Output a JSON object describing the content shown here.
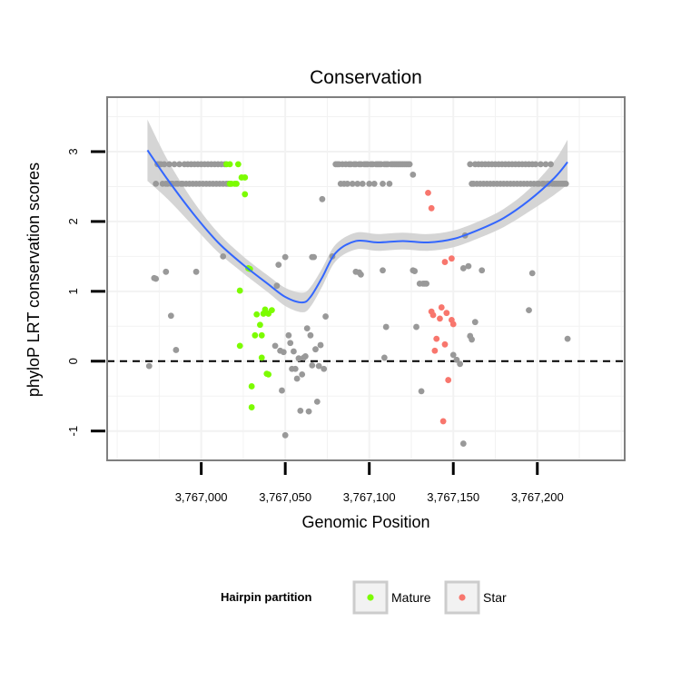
{
  "chart_data": {
    "type": "scatter",
    "title": "Conservation",
    "xlabel": "Genomic Position",
    "ylabel": "phyloP LRT conservation scores",
    "xlim": [
      3766944,
      3767252
    ],
    "ylim": [
      -1.42,
      3.78
    ],
    "x_ticks": [
      3767000,
      3767050,
      3767100,
      3767150,
      3767200
    ],
    "x_tick_labels": [
      "3,767,000",
      "3,767,050",
      "3,767,100",
      "3,767,150",
      "3,767,200"
    ],
    "y_ticks": [
      -1,
      0,
      1,
      2,
      3
    ],
    "y_tick_labels": [
      "-1",
      "0",
      "1",
      "2",
      "3"
    ],
    "grid": true,
    "reference_line": {
      "y": 0,
      "style": "dashed"
    },
    "legend": {
      "title": "Hairpin partition",
      "position": "bottom",
      "entries": [
        {
          "label": "Mature",
          "color": "#7cfc00"
        },
        {
          "label": "Star",
          "color": "#f8766d"
        }
      ]
    },
    "colors": {
      "other": "#999999",
      "Mature": "#7cfc00",
      "Star": "#f8766d",
      "smooth": "#3366ff",
      "band": "#d0d0d0"
    },
    "series": [
      {
        "name": "Other",
        "points": [
          [
            3766973,
            2.54
          ],
          [
            3766974,
            2.82
          ],
          [
            3766975,
            2.82
          ],
          [
            3766976,
            2.82
          ],
          [
            3766977,
            2.54
          ],
          [
            3766978,
            2.82
          ],
          [
            3766979,
            2.54
          ],
          [
            3766980,
            2.54
          ],
          [
            3766981,
            2.82
          ],
          [
            3766982,
            2.54
          ],
          [
            3766983,
            2.54
          ],
          [
            3766984,
            2.82
          ],
          [
            3766985,
            2.54
          ],
          [
            3766986,
            2.54
          ],
          [
            3766987,
            2.82
          ],
          [
            3766988,
            2.54
          ],
          [
            3766989,
            2.54
          ],
          [
            3766990,
            2.82
          ],
          [
            3766991,
            2.54
          ],
          [
            3766992,
            2.82
          ],
          [
            3766993,
            2.54
          ],
          [
            3766994,
            2.82
          ],
          [
            3766995,
            2.54
          ],
          [
            3766996,
            2.82
          ],
          [
            3766997,
            2.54
          ],
          [
            3766998,
            2.82
          ],
          [
            3766999,
            2.54
          ],
          [
            3767000,
            2.82
          ],
          [
            3767001,
            2.54
          ],
          [
            3767002,
            2.82
          ],
          [
            3767003,
            2.54
          ],
          [
            3767004,
            2.82
          ],
          [
            3767005,
            2.54
          ],
          [
            3767006,
            2.82
          ],
          [
            3767007,
            2.54
          ],
          [
            3767008,
            2.82
          ],
          [
            3767009,
            2.54
          ],
          [
            3767010,
            2.82
          ],
          [
            3767011,
            2.54
          ],
          [
            3767012,
            2.82
          ],
          [
            3767013,
            2.54
          ],
          [
            3767014,
            2.82
          ],
          [
            3767015,
            2.54
          ],
          [
            3767016,
            2.54
          ],
          [
            3767017,
            2.54
          ],
          [
            3767080,
            2.82
          ],
          [
            3767081,
            2.82
          ],
          [
            3767082,
            2.82
          ],
          [
            3767083,
            2.54
          ],
          [
            3767084,
            2.82
          ],
          [
            3767085,
            2.54
          ],
          [
            3767086,
            2.82
          ],
          [
            3767087,
            2.54
          ],
          [
            3767088,
            2.82
          ],
          [
            3767089,
            2.82
          ],
          [
            3767090,
            2.54
          ],
          [
            3767091,
            2.82
          ],
          [
            3767092,
            2.82
          ],
          [
            3767093,
            2.54
          ],
          [
            3767094,
            2.82
          ],
          [
            3767095,
            2.82
          ],
          [
            3767096,
            2.54
          ],
          [
            3767097,
            2.82
          ],
          [
            3767098,
            2.82
          ],
          [
            3767099,
            2.82
          ],
          [
            3767100,
            2.54
          ],
          [
            3767101,
            2.82
          ],
          [
            3767102,
            2.82
          ],
          [
            3767103,
            2.54
          ],
          [
            3767104,
            2.82
          ],
          [
            3767105,
            2.82
          ],
          [
            3767106,
            2.82
          ],
          [
            3767107,
            2.82
          ],
          [
            3767108,
            2.54
          ],
          [
            3767109,
            2.82
          ],
          [
            3767110,
            2.82
          ],
          [
            3767111,
            2.82
          ],
          [
            3767112,
            2.54
          ],
          [
            3767113,
            2.82
          ],
          [
            3767114,
            2.82
          ],
          [
            3767115,
            2.82
          ],
          [
            3767116,
            2.82
          ],
          [
            3767117,
            2.82
          ],
          [
            3767118,
            2.82
          ],
          [
            3767119,
            2.82
          ],
          [
            3767120,
            2.82
          ],
          [
            3767121,
            2.82
          ],
          [
            3767122,
            2.82
          ],
          [
            3767123,
            2.82
          ],
          [
            3767124,
            2.82
          ],
          [
            3767126,
            2.67
          ],
          [
            3767160,
            2.82
          ],
          [
            3767161,
            2.54
          ],
          [
            3767162,
            2.54
          ],
          [
            3767163,
            2.82
          ],
          [
            3767164,
            2.54
          ],
          [
            3767165,
            2.82
          ],
          [
            3767166,
            2.54
          ],
          [
            3767167,
            2.82
          ],
          [
            3767168,
            2.54
          ],
          [
            3767169,
            2.82
          ],
          [
            3767170,
            2.54
          ],
          [
            3767171,
            2.82
          ],
          [
            3767172,
            2.54
          ],
          [
            3767173,
            2.82
          ],
          [
            3767174,
            2.54
          ],
          [
            3767175,
            2.82
          ],
          [
            3767176,
            2.54
          ],
          [
            3767177,
            2.82
          ],
          [
            3767178,
            2.54
          ],
          [
            3767179,
            2.82
          ],
          [
            3767180,
            2.54
          ],
          [
            3767181,
            2.82
          ],
          [
            3767182,
            2.54
          ],
          [
            3767183,
            2.82
          ],
          [
            3767184,
            2.54
          ],
          [
            3767185,
            2.82
          ],
          [
            3767186,
            2.54
          ],
          [
            3767187,
            2.82
          ],
          [
            3767188,
            2.54
          ],
          [
            3767189,
            2.82
          ],
          [
            3767190,
            2.54
          ],
          [
            3767191,
            2.82
          ],
          [
            3767192,
            2.54
          ],
          [
            3767193,
            2.82
          ],
          [
            3767194,
            2.54
          ],
          [
            3767195,
            2.82
          ],
          [
            3767196,
            2.54
          ],
          [
            3767197,
            2.82
          ],
          [
            3767198,
            2.54
          ],
          [
            3767199,
            2.82
          ],
          [
            3767200,
            2.54
          ],
          [
            3767201,
            2.54
          ],
          [
            3767202,
            2.82
          ],
          [
            3767203,
            2.54
          ],
          [
            3767204,
            2.54
          ],
          [
            3767205,
            2.82
          ],
          [
            3767206,
            2.54
          ],
          [
            3767207,
            2.54
          ],
          [
            3767208,
            2.82
          ],
          [
            3767209,
            2.54
          ],
          [
            3767210,
            2.54
          ],
          [
            3767211,
            2.54
          ],
          [
            3767212,
            2.54
          ],
          [
            3767213,
            2.54
          ],
          [
            3767214,
            2.54
          ],
          [
            3767215,
            2.54
          ],
          [
            3767216,
            2.54
          ],
          [
            3767217,
            2.54
          ],
          [
            3766969,
            -0.07
          ],
          [
            3766972,
            1.19
          ],
          [
            3766973,
            1.18
          ],
          [
            3766979,
            1.28
          ],
          [
            3766982,
            0.65
          ],
          [
            3766985,
            0.16
          ],
          [
            3766997,
            1.28
          ],
          [
            3767013,
            1.5
          ],
          [
            3767045,
            1.08
          ],
          [
            3767046,
            1.38
          ],
          [
            3767044,
            0.22
          ],
          [
            3767047,
            0.15
          ],
          [
            3767048,
            -0.42
          ],
          [
            3767049,
            0.13
          ],
          [
            3767050,
            -1.06
          ],
          [
            3767050,
            1.49
          ],
          [
            3767052,
            0.37
          ],
          [
            3767053,
            0.26
          ],
          [
            3767054,
            -0.11
          ],
          [
            3767055,
            0.14
          ],
          [
            3767056,
            -0.11
          ],
          [
            3767057,
            -0.25
          ],
          [
            3767058,
            0.04
          ],
          [
            3767059,
            -0.71
          ],
          [
            3767060,
            -0.19
          ],
          [
            3767061,
            0.05
          ],
          [
            3767062,
            0.07
          ],
          [
            3767063,
            0.47
          ],
          [
            3767064,
            -0.72
          ],
          [
            3767065,
            0.37
          ],
          [
            3767066,
            -0.06
          ],
          [
            3767066,
            1.49
          ],
          [
            3767067,
            1.49
          ],
          [
            3767068,
            0.17
          ],
          [
            3767069,
            -0.58
          ],
          [
            3767070,
            -0.07
          ],
          [
            3767071,
            0.23
          ],
          [
            3767072,
            2.32
          ],
          [
            3767073,
            -0.11
          ],
          [
            3767074,
            0.64
          ],
          [
            3767078,
            1.5
          ],
          [
            3767092,
            1.28
          ],
          [
            3767094,
            1.27
          ],
          [
            3767095,
            1.24
          ],
          [
            3767108,
            1.3
          ],
          [
            3767109,
            0.05
          ],
          [
            3767110,
            0.49
          ],
          [
            3767126,
            1.3
          ],
          [
            3767127,
            1.29
          ],
          [
            3767128,
            0.49
          ],
          [
            3767130,
            1.11
          ],
          [
            3767131,
            -0.43
          ],
          [
            3767132,
            1.11
          ],
          [
            3767133,
            1.11
          ],
          [
            3767134,
            1.11
          ],
          [
            3767150,
            0.09
          ],
          [
            3767152,
            0.02
          ],
          [
            3767154,
            -0.04
          ],
          [
            3767156,
            -1.18
          ],
          [
            3767156,
            1.33
          ],
          [
            3767157,
            1.8
          ],
          [
            3767159,
            1.36
          ],
          [
            3767160,
            0.36
          ],
          [
            3767161,
            0.31
          ],
          [
            3767163,
            0.56
          ],
          [
            3767167,
            1.3
          ],
          [
            3767195,
            0.73
          ],
          [
            3767197,
            1.26
          ],
          [
            3767218,
            0.32
          ]
        ]
      },
      {
        "name": "Mature",
        "points": [
          [
            3767015,
            2.82
          ],
          [
            3767017,
            2.82
          ],
          [
            3767017,
            2.54
          ],
          [
            3767018,
            2.54
          ],
          [
            3767020,
            2.54
          ],
          [
            3767021,
            2.54
          ],
          [
            3767022,
            2.82
          ],
          [
            3767024,
            2.63
          ],
          [
            3767026,
            2.63
          ],
          [
            3767026,
            2.39
          ],
          [
            3767028,
            1.33
          ],
          [
            3767029,
            1.32
          ],
          [
            3767023,
            1.01
          ],
          [
            3767023,
            0.22
          ],
          [
            3767030,
            -0.36
          ],
          [
            3767030,
            -0.66
          ],
          [
            3767032,
            0.37
          ],
          [
            3767033,
            0.67
          ],
          [
            3767035,
            0.52
          ],
          [
            3767036,
            0.37
          ],
          [
            3767036,
            0.05
          ],
          [
            3767037,
            0.68
          ],
          [
            3767038,
            0.74
          ],
          [
            3767039,
            -0.18
          ],
          [
            3767040,
            0.68
          ],
          [
            3767040,
            -0.19
          ],
          [
            3767042,
            0.73
          ]
        ]
      },
      {
        "name": "Star",
        "points": [
          [
            3767135,
            2.41
          ],
          [
            3767137,
            2.19
          ],
          [
            3767137,
            0.71
          ],
          [
            3767138,
            0.66
          ],
          [
            3767139,
            0.15
          ],
          [
            3767140,
            0.32
          ],
          [
            3767142,
            0.61
          ],
          [
            3767143,
            0.77
          ],
          [
            3767144,
            -0.86
          ],
          [
            3767145,
            1.42
          ],
          [
            3767145,
            0.24
          ],
          [
            3767146,
            0.69
          ],
          [
            3767147,
            -0.27
          ],
          [
            3767149,
            1.47
          ],
          [
            3767149,
            0.59
          ],
          [
            3767150,
            0.53
          ]
        ]
      }
    ],
    "smooth_curve": {
      "x": [
        3766968,
        3766980,
        3766995,
        3767010,
        3767025,
        3767040,
        3767050,
        3767060,
        3767065,
        3767072,
        3767080,
        3767092,
        3767105,
        3767120,
        3767135,
        3767150,
        3767165,
        3767180,
        3767195,
        3767210,
        3767218
      ],
      "y": [
        3.02,
        2.6,
        2.12,
        1.7,
        1.38,
        1.1,
        0.92,
        0.84,
        0.92,
        1.2,
        1.55,
        1.72,
        1.7,
        1.72,
        1.7,
        1.75,
        1.88,
        2.05,
        2.3,
        2.62,
        2.85
      ],
      "se_half_width": [
        0.44,
        0.28,
        0.18,
        0.14,
        0.12,
        0.12,
        0.13,
        0.14,
        0.14,
        0.13,
        0.12,
        0.12,
        0.12,
        0.12,
        0.12,
        0.12,
        0.12,
        0.13,
        0.16,
        0.24,
        0.32
      ]
    }
  }
}
